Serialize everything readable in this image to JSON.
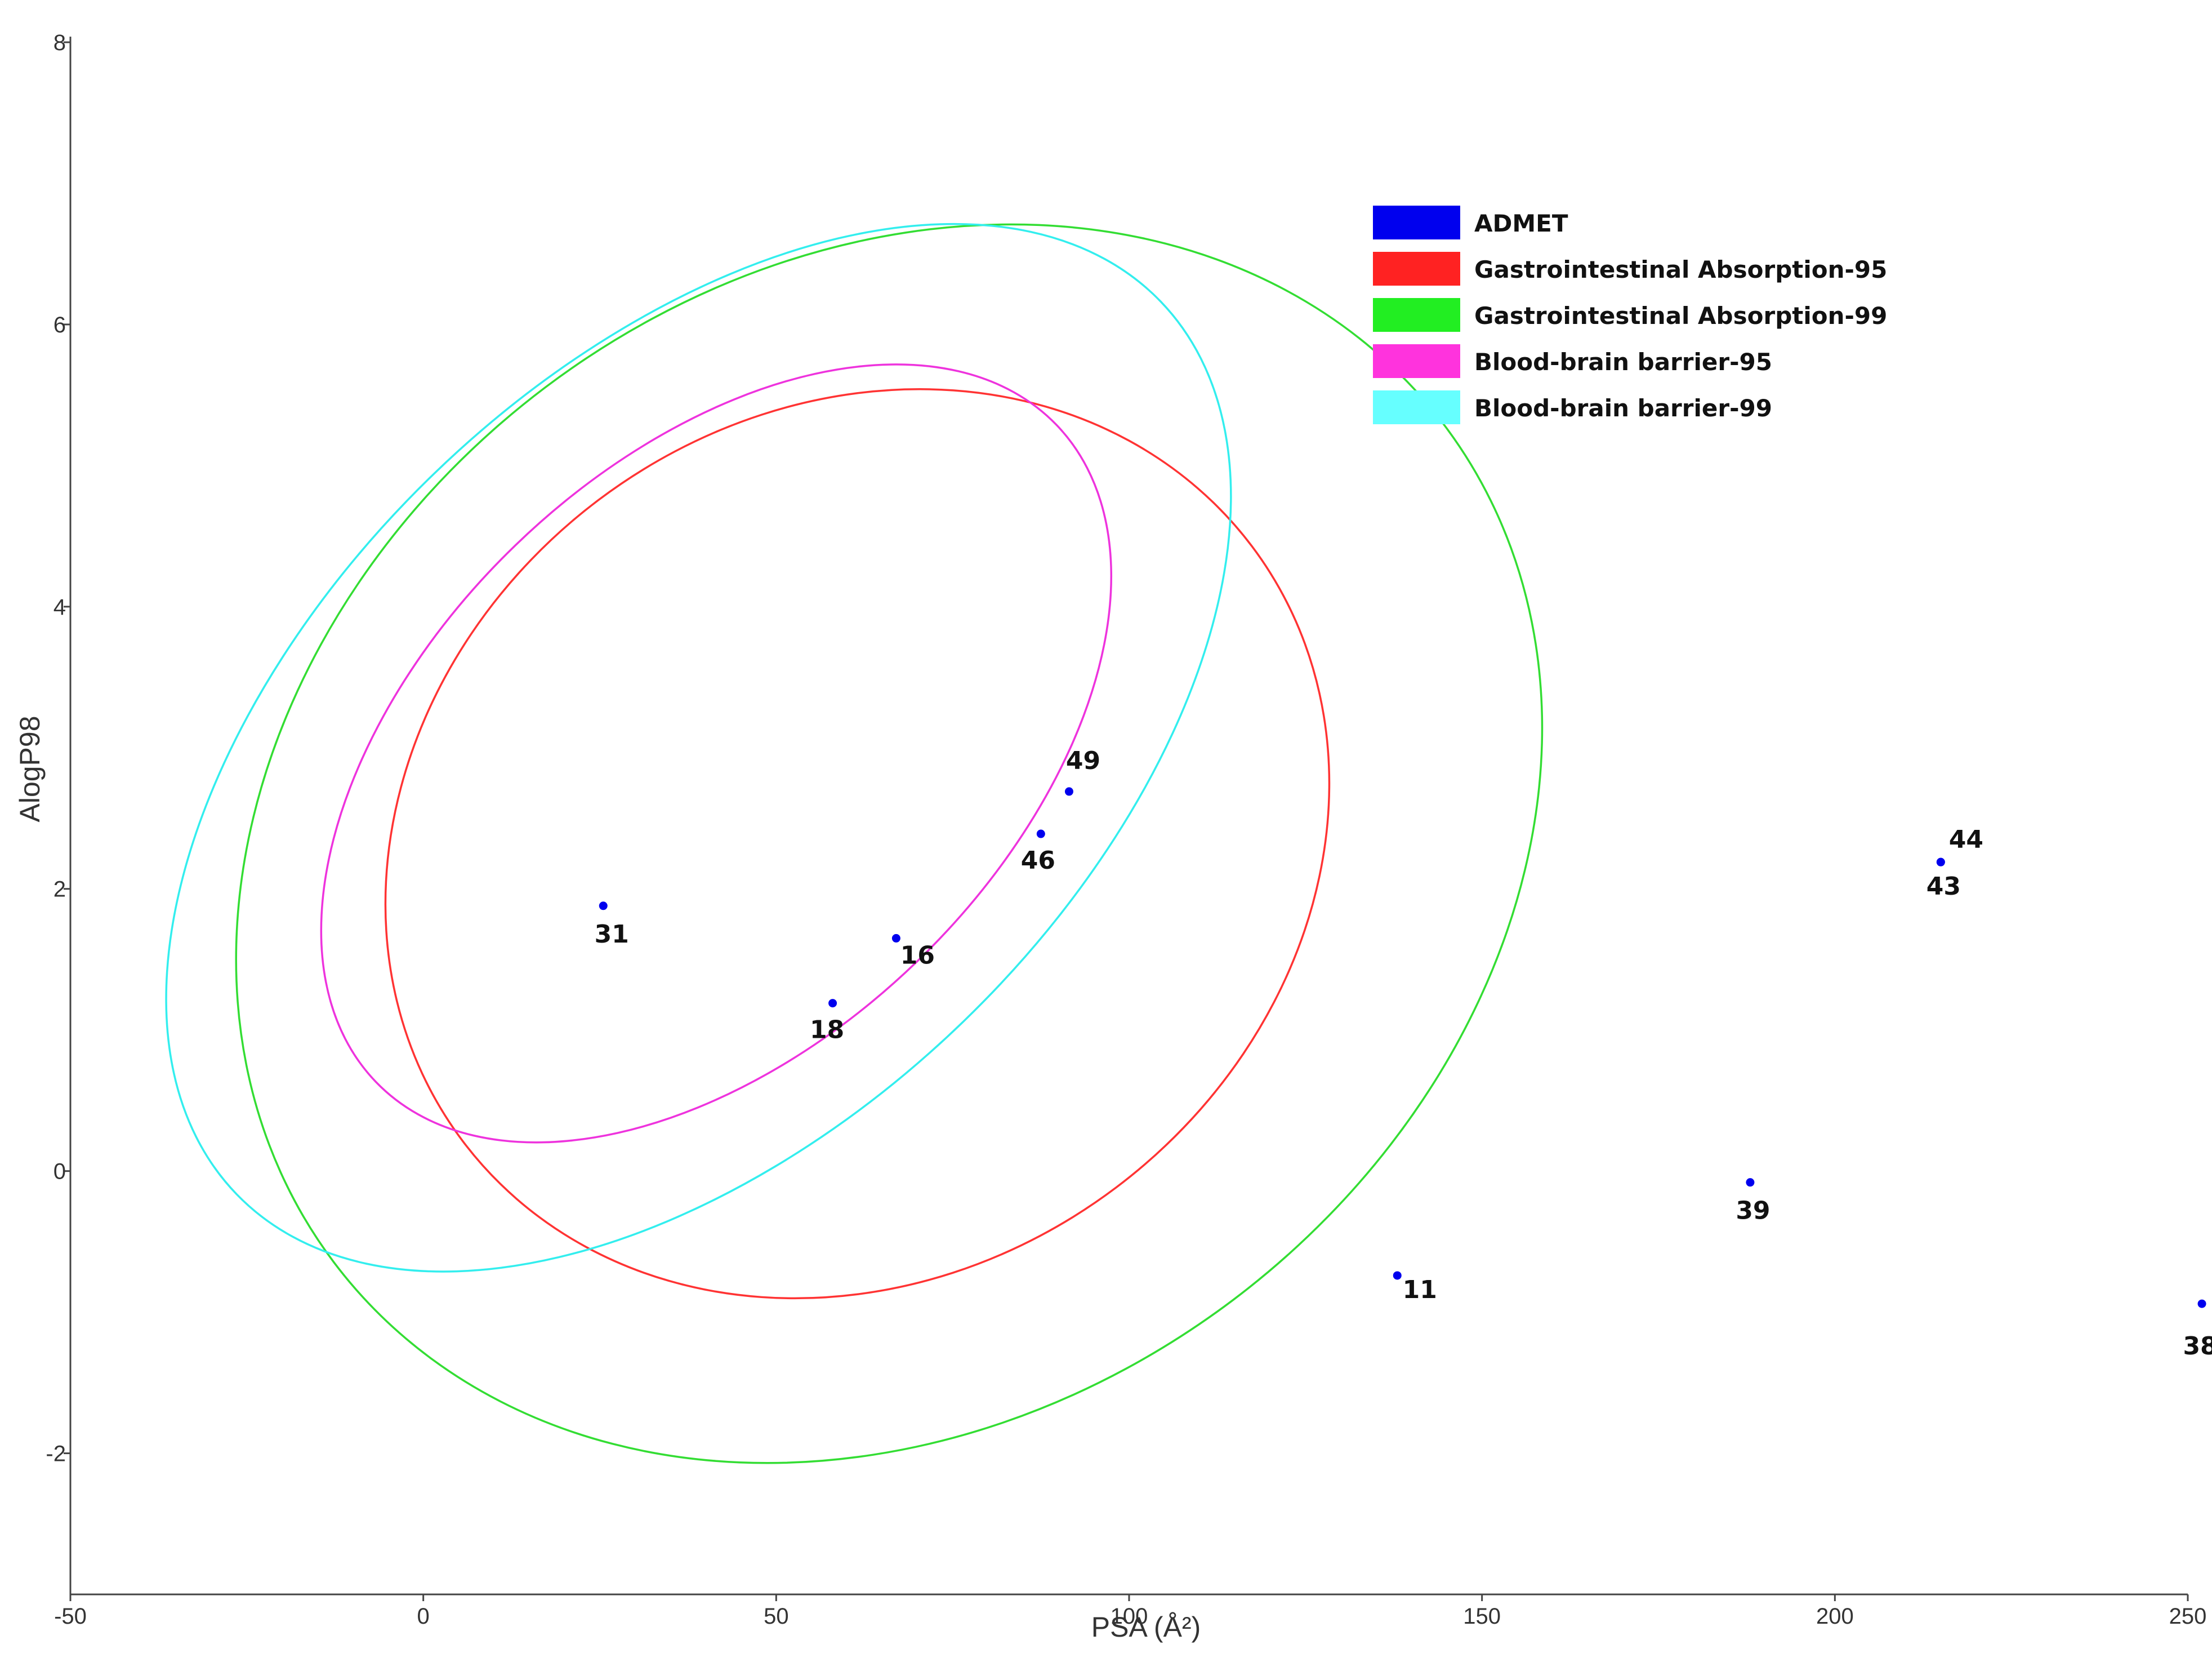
{
  "chart_data": {
    "type": "scatter",
    "xlabel": "PSA (Å²)",
    "ylabel": "AlogP98",
    "xlim": [
      -50,
      250
    ],
    "ylim": [
      -3,
      8
    ],
    "x_ticks": [
      -50,
      0,
      50,
      100,
      150,
      200,
      250
    ],
    "y_ticks": [
      -2,
      0,
      2,
      4,
      6,
      8
    ],
    "grid": false,
    "legend_position": "top-right",
    "points": [
      {
        "label": "31",
        "x": 25.5,
        "y": 1.88
      },
      {
        "label": "16",
        "x": 67.0,
        "y": 1.65
      },
      {
        "label": "18",
        "x": 58.0,
        "y": 1.19
      },
      {
        "label": "46",
        "x": 87.5,
        "y": 2.39
      },
      {
        "label": "49",
        "x": 91.5,
        "y": 2.69
      },
      {
        "label": "44",
        "x": 215.0,
        "y": 2.19
      },
      {
        "label": "43",
        "x": 215.0,
        "y": 2.19
      },
      {
        "label": "39",
        "x": 188.0,
        "y": -0.08
      },
      {
        "label": "11",
        "x": 138.0,
        "y": -0.74
      },
      {
        "label": "38",
        "x": 252.0,
        "y": -0.94
      }
    ],
    "ellipses": [
      {
        "name": "Gastrointestinal Absorption-95",
        "color": "#ff3333",
        "cx": 61.5,
        "cy": 2.32,
        "rx_psa": 70.0,
        "ry_alogp": 3.05,
        "rotation_deg": -37.0
      },
      {
        "name": "Gastrointestinal Absorption-99",
        "color": "#33dd33",
        "cx": 66.0,
        "cy": 2.32,
        "rx_psa": 98.5,
        "ry_alogp": 4.05,
        "rotation_deg": -37.0
      },
      {
        "name": "Blood-brain barrier-95",
        "color": "#ee33dd",
        "cx": 41.5,
        "cy": 2.96,
        "rx_psa": 67.0,
        "ry_alogp": 2.05,
        "rotation_deg": -44.0
      },
      {
        "name": "Blood-brain barrier-99",
        "color": "#33eeee",
        "cx": 39.0,
        "cy": 3.0,
        "rx_psa": 91.0,
        "ry_alogp": 2.7,
        "rotation_deg": -44.0
      }
    ],
    "legend": [
      {
        "name": "ADMET",
        "color": "#0000ee"
      },
      {
        "name": "Gastrointestinal Absorption-95",
        "color": "#ff2222"
      },
      {
        "name": "Gastrointestinal Absorption-99",
        "color": "#22ee22"
      },
      {
        "name": "Blood-brain barrier-95",
        "color": "#ff33dd"
      },
      {
        "name": "Blood-brain barrier-99",
        "color": "#66ffff"
      }
    ],
    "point_color": "#0000ee"
  }
}
